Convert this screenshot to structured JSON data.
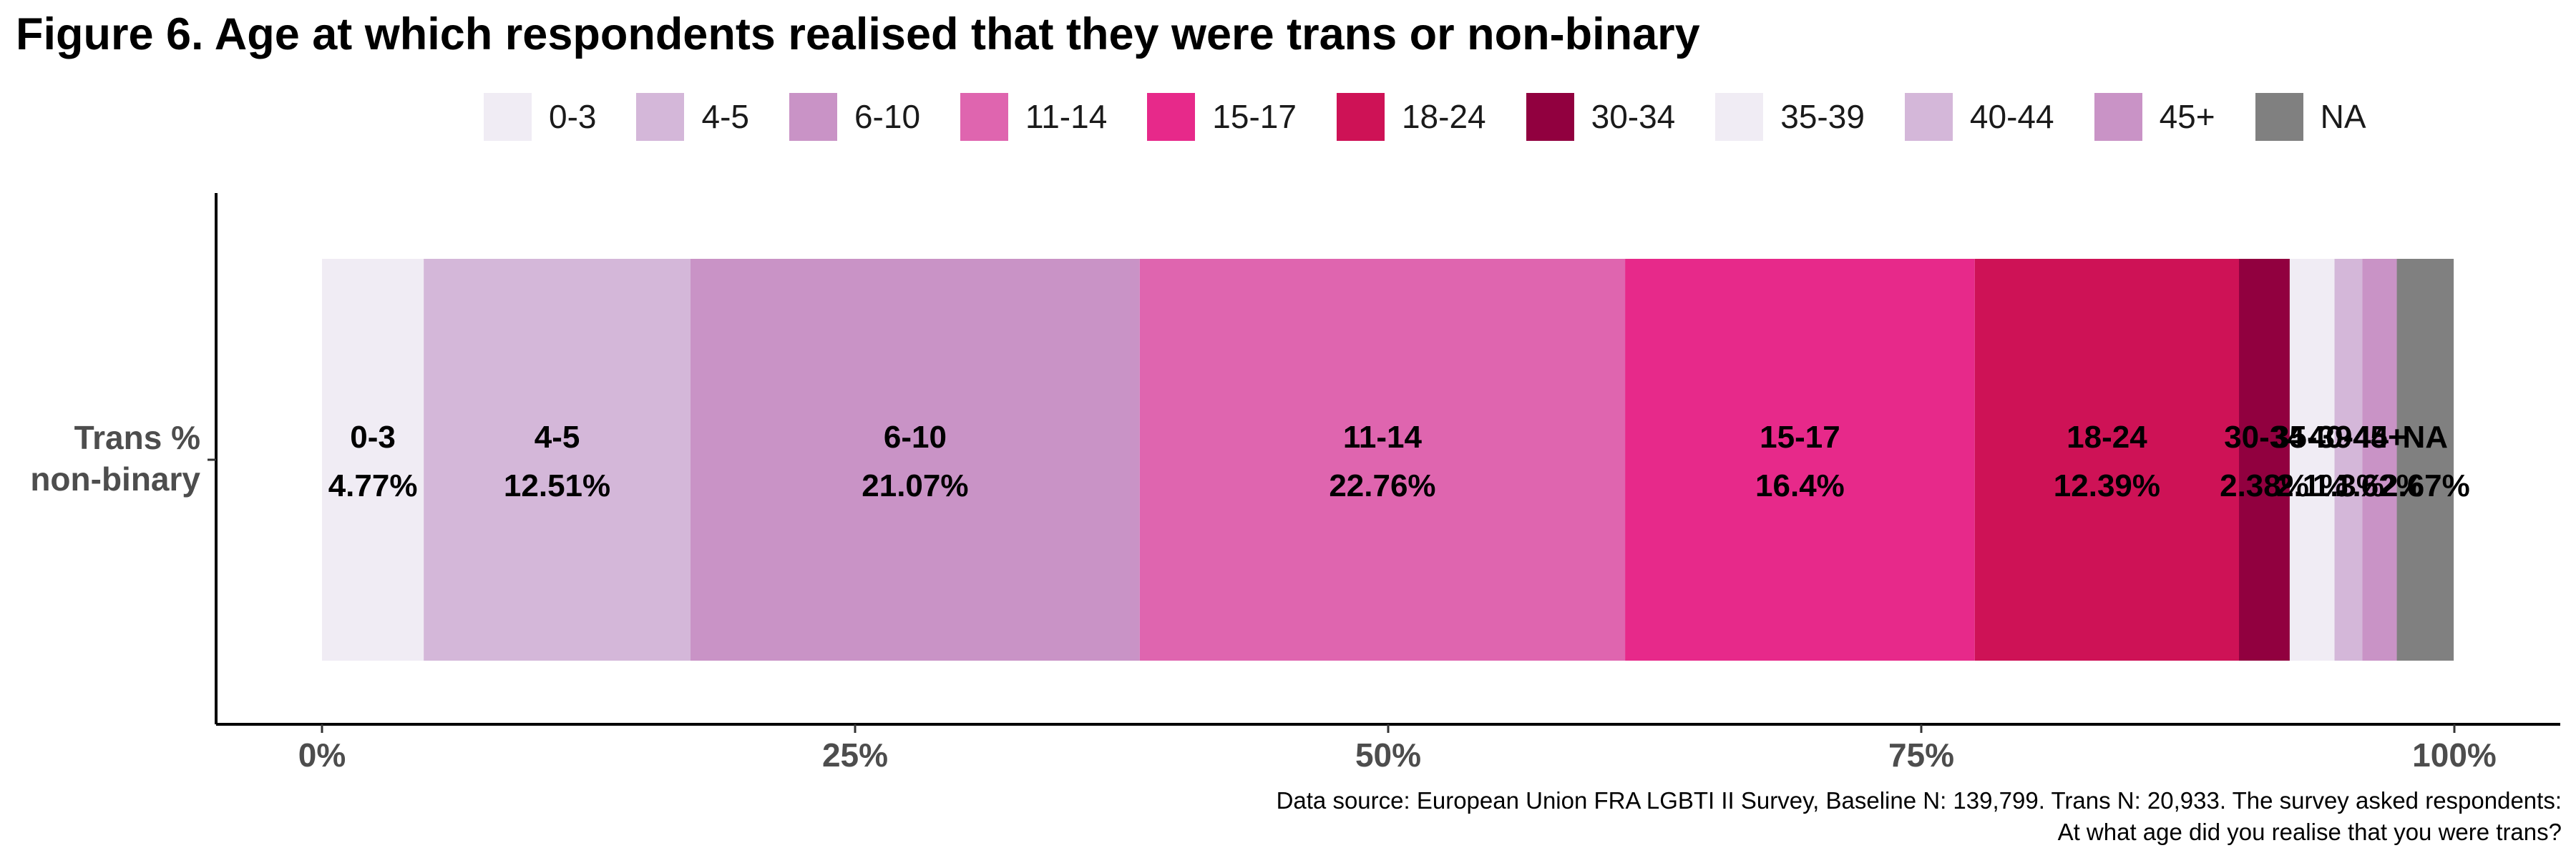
{
  "chart_data": {
    "type": "bar",
    "orientation": "horizontal",
    "stacked": true,
    "title": "Figure 6. Age at which respondents realised that they were trans or non-binary",
    "categories": [
      "Trans % non-binary"
    ],
    "category_lines": [
      "Trans %",
      "non-binary"
    ],
    "series": [
      {
        "name": "0-3",
        "values": [
          4.77
        ],
        "label": "4.77%",
        "color": "#F0ECF4"
      },
      {
        "name": "4-5",
        "values": [
          12.51
        ],
        "label": "12.51%",
        "color": "#D4B7D9"
      },
      {
        "name": "6-10",
        "values": [
          21.07
        ],
        "label": "21.07%",
        "color": "#C993C6"
      },
      {
        "name": "11-14",
        "values": [
          22.76
        ],
        "label": "22.76%",
        "color": "#DF65AF"
      },
      {
        "name": "15-17",
        "values": [
          16.4
        ],
        "label": "16.4%",
        "color": "#E7298A"
      },
      {
        "name": "18-24",
        "values": [
          12.39
        ],
        "label": "12.39%",
        "color": "#CE1256"
      },
      {
        "name": "30-34",
        "values": [
          2.38
        ],
        "label": "2.38%",
        "color": "#91003F"
      },
      {
        "name": "35-39",
        "values": [
          2.1
        ],
        "label": "2.1%",
        "color": "#F0ECF4"
      },
      {
        "name": "40-44",
        "values": [
          1.3
        ],
        "label": "1.3%",
        "color": "#D4B7D9"
      },
      {
        "name": "45+",
        "values": [
          1.62
        ],
        "label": "1.62%",
        "color": "#C993C6"
      },
      {
        "name": "NA",
        "values": [
          2.67
        ],
        "label": "2.67%",
        "color": "#808080"
      }
    ],
    "xlim": [
      0,
      100
    ],
    "x_ticks": [
      0,
      25,
      50,
      75,
      100
    ],
    "x_tick_labels": [
      "0%",
      "25%",
      "50%",
      "75%",
      "100%"
    ],
    "grid": false,
    "legend_position": "top"
  },
  "source_lines": [
    "Data source: European Union FRA LGBTI II Survey, Baseline N: 139,799. Trans N: 20,933. The survey asked respondents:",
    "At what age did you realise that you were trans?"
  ]
}
